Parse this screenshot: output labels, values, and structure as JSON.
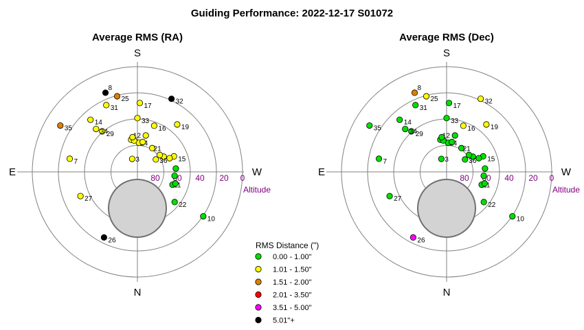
{
  "title": "Guiding Performance: 2022-12-17 S01072",
  "colors": {
    "green": "#00e000",
    "yellow": "#ffff00",
    "orange": "#e08000",
    "red": "#ff0000",
    "magenta": "#ff00ff",
    "black": "#000000",
    "alt_label": "#800080",
    "gray_disk": "#d3d3d3"
  },
  "legend": {
    "title": "RMS Distance (\")",
    "items": [
      {
        "label": "0.00 - 1.00\"",
        "color": "green"
      },
      {
        "label": "1.01 - 1.50\"",
        "color": "yellow"
      },
      {
        "label": "1.51 - 2.00\"",
        "color": "orange"
      },
      {
        "label": "2.01 - 3.50\"",
        "color": "red"
      },
      {
        "label": "3.51 - 5.00\"",
        "color": "magenta"
      },
      {
        "label": "5.01\"+",
        "color": "black"
      }
    ]
  },
  "chart_data": [
    {
      "type": "scatter",
      "projection": "polar-altaz",
      "title": "Average RMS (RA)",
      "directions": {
        "top": "S",
        "bottom": "N",
        "left": "E",
        "right": "W"
      },
      "radial_axis": {
        "label": "Altitude",
        "ticks": [
          "80",
          "60",
          "40",
          "20",
          "0"
        ],
        "rings_altitude": [
          80,
          60,
          40,
          20,
          0
        ]
      },
      "points": [
        {
          "id": "3",
          "az": 158,
          "alt": 78,
          "cat": "yellow"
        },
        {
          "id": "7",
          "az": 101,
          "alt": 31,
          "cat": "yellow"
        },
        {
          "id": "8",
          "az": 158,
          "alt": 17,
          "cat": "black"
        },
        {
          "id": "10",
          "az": 304,
          "alt": 22,
          "cat": "green"
        },
        {
          "id": "11",
          "az": 290,
          "alt": 58,
          "cat": "green"
        },
        {
          "id": "12",
          "az": 169,
          "alt": 62,
          "cat": "yellow"
        },
        {
          "id": "14",
          "az": 138,
          "alt": 30,
          "cat": "yellow"
        },
        {
          "id": "15",
          "az": 247,
          "alt": 56,
          "cat": "yellow"
        },
        {
          "id": "16",
          "az": 200,
          "alt": 48,
          "cat": "yellow"
        },
        {
          "id": "17",
          "az": 182,
          "alt": 31,
          "cat": "yellow"
        },
        {
          "id": "19",
          "az": 220,
          "alt": 37,
          "cat": "yellow"
        },
        {
          "id": "21",
          "az": 212,
          "alt": 66,
          "cat": "yellow"
        },
        {
          "id": "22",
          "az": 309,
          "alt": 49,
          "cat": "green"
        },
        {
          "id": "24",
          "az": 183,
          "alt": 65,
          "cat": "yellow"
        },
        {
          "id": "25",
          "az": 165,
          "alt": 23,
          "cat": "orange"
        },
        {
          "id": "26",
          "az": 27,
          "alt": 27,
          "cat": "black"
        },
        {
          "id": "27",
          "az": 67,
          "alt": 37,
          "cat": "yellow"
        },
        {
          "id": "29",
          "az": 139,
          "alt": 44,
          "cat": "yellow"
        },
        {
          "id": "31",
          "az": 155,
          "alt": 27,
          "cat": "yellow"
        },
        {
          "id": "32",
          "az": 205,
          "alt": 21,
          "cat": "black"
        },
        {
          "id": "33",
          "az": 180,
          "alt": 44,
          "cat": "yellow"
        },
        {
          "id": "34",
          "az": 136,
          "alt": 39,
          "cat": "yellow"
        },
        {
          "id": "35",
          "az": 121,
          "alt": 13,
          "cat": "orange"
        },
        {
          "id": "36",
          "az": 240,
          "alt": 64,
          "cat": "yellow"
        },
        {
          "id": "",
          "az": 174,
          "alt": 63,
          "cat": "yellow"
        },
        {
          "id": "",
          "az": 172,
          "alt": 60,
          "cat": "yellow"
        },
        {
          "id": "",
          "az": 190,
          "alt": 64,
          "cat": "yellow"
        },
        {
          "id": "",
          "az": 193,
          "alt": 58,
          "cat": "yellow"
        },
        {
          "id": "",
          "az": 236,
          "alt": 71,
          "cat": "yellow"
        },
        {
          "id": "",
          "az": 233,
          "alt": 66,
          "cat": "yellow"
        },
        {
          "id": "",
          "az": 247,
          "alt": 60,
          "cat": "yellow"
        },
        {
          "id": "",
          "az": 265,
          "alt": 57,
          "cat": "green"
        },
        {
          "id": "",
          "az": 276,
          "alt": 58,
          "cat": "green"
        },
        {
          "id": "",
          "az": 287,
          "alt": 56,
          "cat": "green"
        }
      ]
    },
    {
      "type": "scatter",
      "projection": "polar-altaz",
      "title": "Average RMS (Dec)",
      "directions": {
        "top": "S",
        "bottom": "N",
        "left": "E",
        "right": "W"
      },
      "radial_axis": {
        "label": "Altitude",
        "ticks": [
          "80",
          "60",
          "40",
          "20",
          "0"
        ],
        "rings_altitude": [
          80,
          60,
          40,
          20,
          0
        ]
      },
      "points": [
        {
          "id": "3",
          "az": 158,
          "alt": 78,
          "cat": "green"
        },
        {
          "id": "7",
          "az": 101,
          "alt": 31,
          "cat": "green"
        },
        {
          "id": "8",
          "az": 158,
          "alt": 17,
          "cat": "orange"
        },
        {
          "id": "10",
          "az": 304,
          "alt": 22,
          "cat": "green"
        },
        {
          "id": "11",
          "az": 290,
          "alt": 58,
          "cat": "green"
        },
        {
          "id": "12",
          "az": 169,
          "alt": 62,
          "cat": "green"
        },
        {
          "id": "14",
          "az": 138,
          "alt": 30,
          "cat": "green"
        },
        {
          "id": "15",
          "az": 247,
          "alt": 56,
          "cat": "green"
        },
        {
          "id": "16",
          "az": 200,
          "alt": 48,
          "cat": "yellow"
        },
        {
          "id": "17",
          "az": 182,
          "alt": 31,
          "cat": "green"
        },
        {
          "id": "19",
          "az": 220,
          "alt": 37,
          "cat": "yellow"
        },
        {
          "id": "21",
          "az": 212,
          "alt": 66,
          "cat": "green"
        },
        {
          "id": "22",
          "az": 309,
          "alt": 49,
          "cat": "green"
        },
        {
          "id": "24",
          "az": 183,
          "alt": 65,
          "cat": "green"
        },
        {
          "id": "25",
          "az": 165,
          "alt": 23,
          "cat": "yellow"
        },
        {
          "id": "26",
          "az": 27,
          "alt": 27,
          "cat": "magenta"
        },
        {
          "id": "27",
          "az": 67,
          "alt": 37,
          "cat": "green"
        },
        {
          "id": "29",
          "az": 139,
          "alt": 44,
          "cat": "green"
        },
        {
          "id": "31",
          "az": 155,
          "alt": 27,
          "cat": "green"
        },
        {
          "id": "32",
          "az": 205,
          "alt": 21,
          "cat": "yellow"
        },
        {
          "id": "33",
          "az": 180,
          "alt": 44,
          "cat": "green"
        },
        {
          "id": "34",
          "az": 136,
          "alt": 39,
          "cat": "green"
        },
        {
          "id": "35",
          "az": 121,
          "alt": 13,
          "cat": "green"
        },
        {
          "id": "36",
          "az": 240,
          "alt": 64,
          "cat": "green"
        },
        {
          "id": "",
          "az": 174,
          "alt": 63,
          "cat": "green"
        },
        {
          "id": "",
          "az": 172,
          "alt": 60,
          "cat": "green"
        },
        {
          "id": "",
          "az": 190,
          "alt": 64,
          "cat": "green"
        },
        {
          "id": "",
          "az": 193,
          "alt": 58,
          "cat": "green"
        },
        {
          "id": "",
          "az": 236,
          "alt": 71,
          "cat": "green"
        },
        {
          "id": "",
          "az": 233,
          "alt": 66,
          "cat": "green"
        },
        {
          "id": "",
          "az": 247,
          "alt": 60,
          "cat": "green"
        },
        {
          "id": "",
          "az": 265,
          "alt": 57,
          "cat": "green"
        },
        {
          "id": "",
          "az": 276,
          "alt": 58,
          "cat": "green"
        },
        {
          "id": "",
          "az": 287,
          "alt": 56,
          "cat": "green"
        }
      ]
    }
  ]
}
